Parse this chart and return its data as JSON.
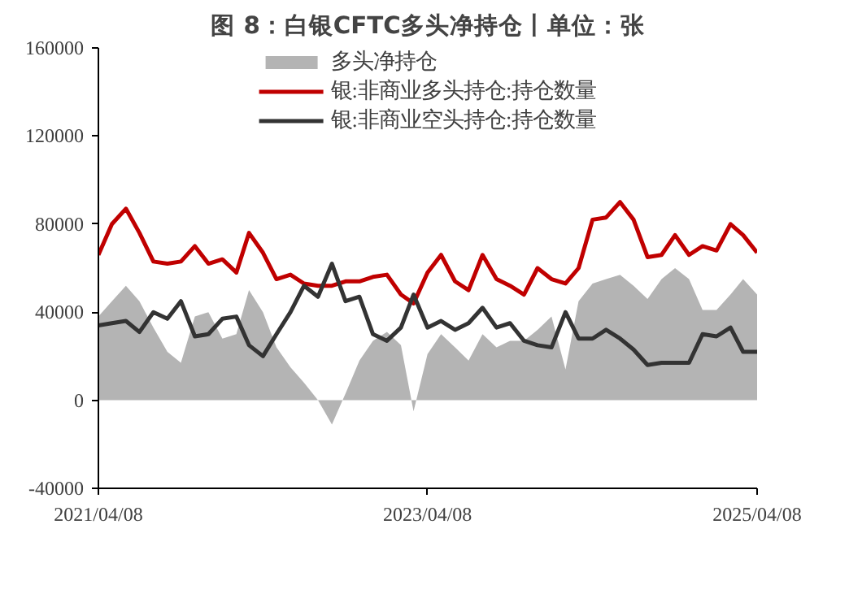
{
  "chart_data": {
    "type": "line",
    "title": "图 8：白银CFTC多头净持仓丨单位：张",
    "x": [
      "2021-04-08",
      "2021-05-08",
      "2021-06-08",
      "2021-07-08",
      "2021-08-08",
      "2021-09-08",
      "2021-10-08",
      "2021-11-08",
      "2021-12-08",
      "2022-01-08",
      "2022-02-08",
      "2022-03-08",
      "2022-04-08",
      "2022-05-08",
      "2022-06-08",
      "2022-07-08",
      "2022-08-08",
      "2022-09-08",
      "2022-10-08",
      "2022-11-08",
      "2022-12-08",
      "2023-01-08",
      "2023-02-08",
      "2023-03-08",
      "2023-04-08",
      "2023-05-08",
      "2023-06-08",
      "2023-07-08",
      "2023-08-08",
      "2023-09-08",
      "2023-10-08",
      "2023-11-08",
      "2023-12-08",
      "2024-01-08",
      "2024-02-08",
      "2024-03-08",
      "2024-04-08",
      "2024-05-08",
      "2024-06-08",
      "2024-07-08",
      "2024-08-08",
      "2024-09-08",
      "2024-10-08",
      "2024-11-08",
      "2024-12-08",
      "2025-01-08",
      "2025-02-08",
      "2025-03-08",
      "2025-04-08"
    ],
    "series": [
      {
        "name": "多头净持仓",
        "type": "area",
        "color": "#b4b4b4",
        "values": [
          38000,
          45000,
          52000,
          45000,
          33000,
          22000,
          17000,
          38000,
          40000,
          28000,
          30000,
          50000,
          40000,
          24000,
          15000,
          8000,
          0,
          -11000,
          3000,
          18000,
          27000,
          31000,
          25000,
          -5000,
          21000,
          30000,
          24000,
          18000,
          30000,
          24000,
          27000,
          27000,
          32000,
          38000,
          14000,
          45000,
          53000,
          55000,
          57000,
          52000,
          46000,
          55000,
          60000,
          55000,
          41000,
          41000,
          48000,
          55000,
          48000
        ]
      },
      {
        "name": "银:非商业多头持仓:持仓数量",
        "color": "#c00000",
        "values": [
          66000,
          80000,
          87000,
          76000,
          63000,
          62000,
          63000,
          70000,
          62000,
          64000,
          58000,
          76000,
          67000,
          55000,
          57000,
          53000,
          52000,
          52000,
          54000,
          54000,
          56000,
          57000,
          48000,
          44000,
          58000,
          66000,
          54000,
          50000,
          66000,
          55000,
          52000,
          48000,
          60000,
          55000,
          53000,
          60000,
          82000,
          83000,
          90000,
          82000,
          65000,
          66000,
          75000,
          66000,
          70000,
          68000,
          80000,
          75000,
          67000
        ]
      },
      {
        "name": "银:非商业空头持仓:持仓数量",
        "color": "#333333",
        "values": [
          34000,
          35000,
          36000,
          31000,
          40000,
          37000,
          45000,
          29000,
          30000,
          37000,
          38000,
          25000,
          20000,
          30000,
          40000,
          52000,
          47000,
          62000,
          45000,
          47000,
          30000,
          27000,
          33000,
          48000,
          33000,
          36000,
          32000,
          35000,
          42000,
          33000,
          35000,
          27000,
          25000,
          24000,
          40000,
          28000,
          28000,
          32000,
          28000,
          23000,
          16000,
          17000,
          17000,
          17000,
          30000,
          29000,
          33000,
          22000,
          22000
        ]
      }
    ],
    "xlim": [
      "2021-04-08",
      "2025-04-08"
    ],
    "xticks": [
      {
        "value": "2021-04-08",
        "label": "2021/04/08"
      },
      {
        "value": "2023-04-08",
        "label": "2023/04/08"
      },
      {
        "value": "2025-04-08",
        "label": "2025/04/08"
      }
    ],
    "ylim": [
      -40000,
      160000
    ],
    "yticks": [
      -40000,
      0,
      40000,
      80000,
      120000,
      160000
    ],
    "grid": false,
    "legend": "top"
  }
}
